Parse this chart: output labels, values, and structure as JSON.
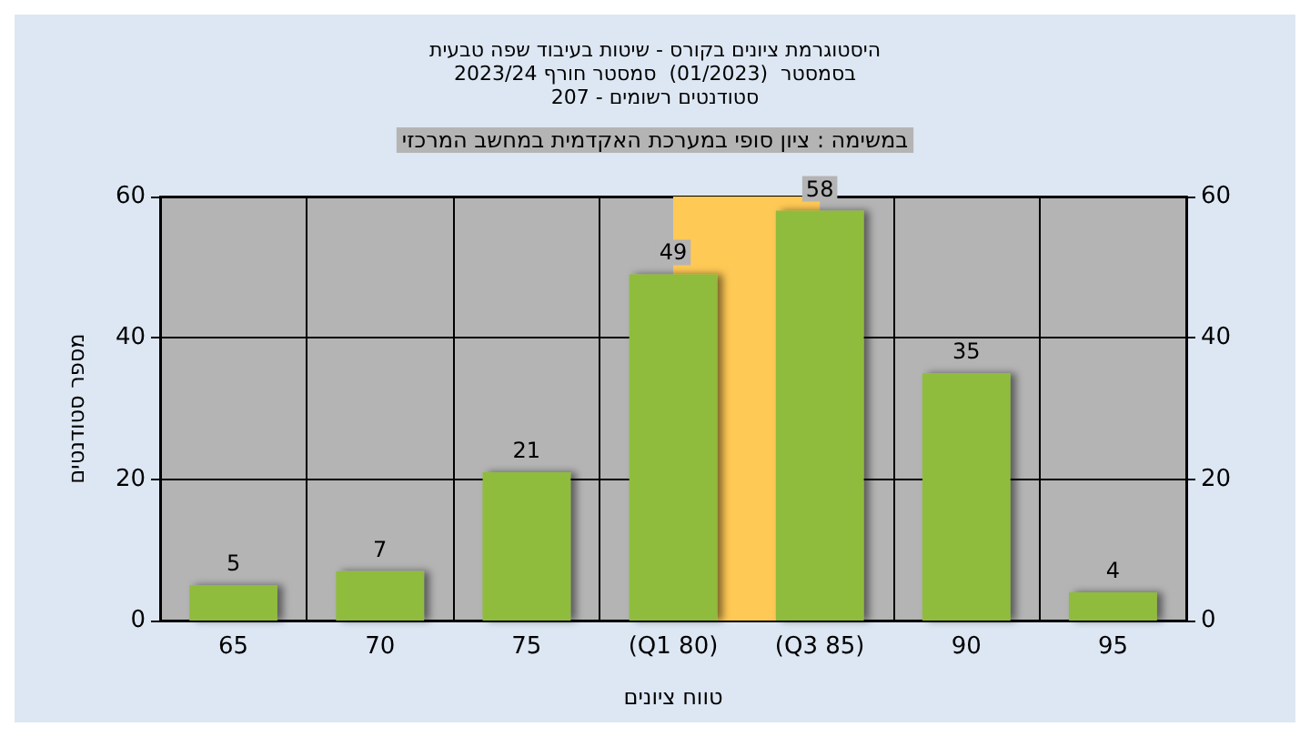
{
  "chart_data": {
    "type": "bar",
    "title": "היסטוגרמת ציונים בקורס - שיטות בעיבוד שפה טבעית\nבסמסטר  (01/2023)  סמסטר חורף 2023/24\nסטודנטים רשומים - 207",
    "xlabel": "טווח ציונים",
    "ylabel": "מספר סטודנטים",
    "annotations": [
      "במשימה : ציון סופי במערכת האקדמית במחשב המרכזי"
    ],
    "categories": [
      "65",
      "70",
      "75",
      "(Q1 80)",
      "(Q3 85)",
      "90",
      "95"
    ],
    "values": [
      5,
      7,
      21,
      49,
      58,
      35,
      4
    ],
    "color": "#8fbc3c",
    "data_labels": true,
    "ylim": [
      0,
      60
    ],
    "yticks": [
      0,
      20,
      40,
      60
    ],
    "y2lim": [
      0,
      60
    ],
    "y2ticks": [
      0,
      20,
      40,
      60
    ],
    "bands": [
      {
        "axis": "x",
        "from": "(Q1 80)",
        "to": "(Q3 85)",
        "color": "#ffc955"
      }
    ],
    "grid": true
  }
}
